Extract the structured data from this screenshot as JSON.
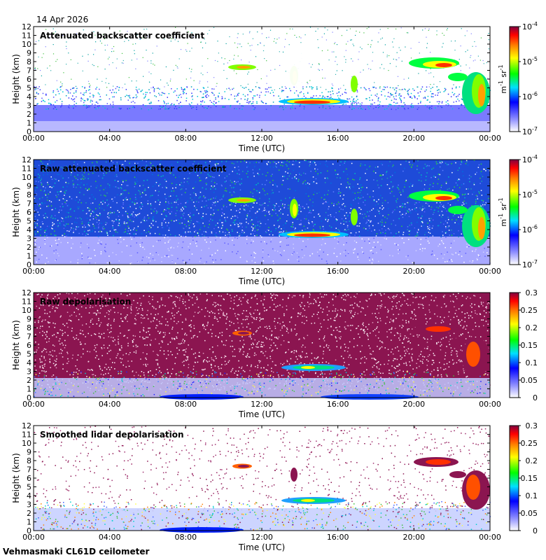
{
  "header": {
    "date": "14 Apr 2026"
  },
  "footer": {
    "instrument": "Vehmasmaki CL61D ceilometer"
  },
  "chart_data": [
    {
      "type": "heatmap",
      "title": "Attenuated backscatter coefficient",
      "xlabel": "Time (UTC)",
      "ylabel": "Height (km)",
      "x_ticks": [
        "00:00",
        "04:00",
        "08:00",
        "12:00",
        "16:00",
        "20:00",
        "00:00"
      ],
      "ylim": [
        0,
        12
      ],
      "y_ticks": [
        0,
        1,
        2,
        3,
        4,
        5,
        6,
        7,
        8,
        9,
        10,
        11,
        12
      ],
      "colorbar": {
        "scale": "log",
        "range": [
          1e-07,
          0.0001
        ],
        "ticks": [
          "10-7",
          "10-6",
          "10-5",
          "10-4"
        ],
        "unit": "m-1 sr-1"
      }
    },
    {
      "type": "heatmap",
      "title": "Raw attenuated backscatter coefficient",
      "xlabel": "Time (UTC)",
      "ylabel": "Height (km)",
      "x_ticks": [
        "00:00",
        "04:00",
        "08:00",
        "12:00",
        "16:00",
        "20:00",
        "00:00"
      ],
      "ylim": [
        0,
        12
      ],
      "y_ticks": [
        0,
        1,
        2,
        3,
        4,
        5,
        6,
        7,
        8,
        9,
        10,
        11,
        12
      ],
      "colorbar": {
        "scale": "log",
        "range": [
          1e-07,
          0.0001
        ],
        "ticks": [
          "10-7",
          "10-6",
          "10-5",
          "10-4"
        ],
        "unit": "m-1 sr-1"
      }
    },
    {
      "type": "heatmap",
      "title": "Raw depolarisation",
      "xlabel": "Time (UTC)",
      "ylabel": "Height (km)",
      "x_ticks": [
        "00:00",
        "04:00",
        "08:00",
        "12:00",
        "16:00",
        "20:00",
        "00:00"
      ],
      "ylim": [
        0,
        12
      ],
      "y_ticks": [
        0,
        1,
        2,
        3,
        4,
        5,
        6,
        7,
        8,
        9,
        10,
        11,
        12
      ],
      "colorbar": {
        "scale": "linear",
        "range": [
          0,
          0.3
        ],
        "ticks": [
          "0",
          "0.05",
          "0.1",
          "0.15",
          "0.2",
          "0.25",
          "0.3"
        ],
        "unit": ""
      }
    },
    {
      "type": "heatmap",
      "title": "Smoothed lidar depolarisation",
      "xlabel": "Time (UTC)",
      "ylabel": "Height (km)",
      "x_ticks": [
        "00:00",
        "04:00",
        "08:00",
        "12:00",
        "16:00",
        "20:00",
        "00:00"
      ],
      "ylim": [
        0,
        12
      ],
      "y_ticks": [
        0,
        1,
        2,
        3,
        4,
        5,
        6,
        7,
        8,
        9,
        10,
        11,
        12
      ],
      "colorbar": {
        "scale": "linear",
        "range": [
          0,
          0.3
        ],
        "ticks": [
          "0",
          "0.05",
          "0.1",
          "0.15",
          "0.2",
          "0.25",
          "0.3"
        ],
        "unit": ""
      }
    }
  ]
}
